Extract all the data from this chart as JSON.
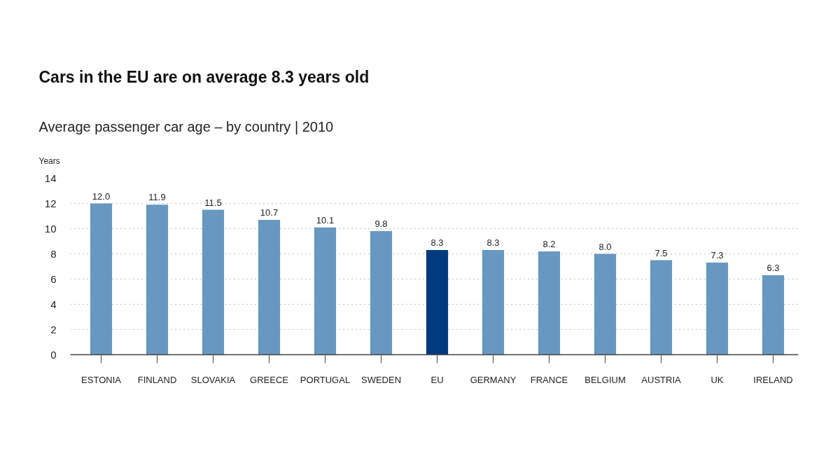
{
  "chart_data": {
    "type": "bar",
    "title": "Cars in the EU are on average 8.3 years old",
    "subtitle": "Average passenger car age – by country | 2010",
    "ylabel": "Years",
    "categories": [
      "ESTONIA",
      "FINLAND",
      "SLOVAKIA",
      "GREECE",
      "PORTUGAL",
      "SWEDEN",
      "EU",
      "GERMANY",
      "FRANCE",
      "BELGIUM",
      "AUSTRIA",
      "UK",
      "IRELAND"
    ],
    "values": [
      12.0,
      11.9,
      11.5,
      10.7,
      10.1,
      9.8,
      8.3,
      8.3,
      8.2,
      8.0,
      7.5,
      7.3,
      6.3
    ],
    "value_labels": [
      "12.0",
      "11.9",
      "11.5",
      "10.7",
      "10.1",
      "9.8",
      "8.3",
      "8.3",
      "8.2",
      "8.0",
      "7.5",
      "7.3",
      "6.3"
    ],
    "colors": [
      "#6897bf",
      "#6897bf",
      "#6897bf",
      "#6897bf",
      "#6897bf",
      "#6897bf",
      "#023a80",
      "#6897bf",
      "#6897bf",
      "#6897bf",
      "#6897bf",
      "#6897bf",
      "#6897bf"
    ],
    "ylim": [
      0,
      14
    ],
    "yticks": [
      0,
      2,
      4,
      6,
      8,
      10,
      12,
      14
    ],
    "grid": "y"
  }
}
